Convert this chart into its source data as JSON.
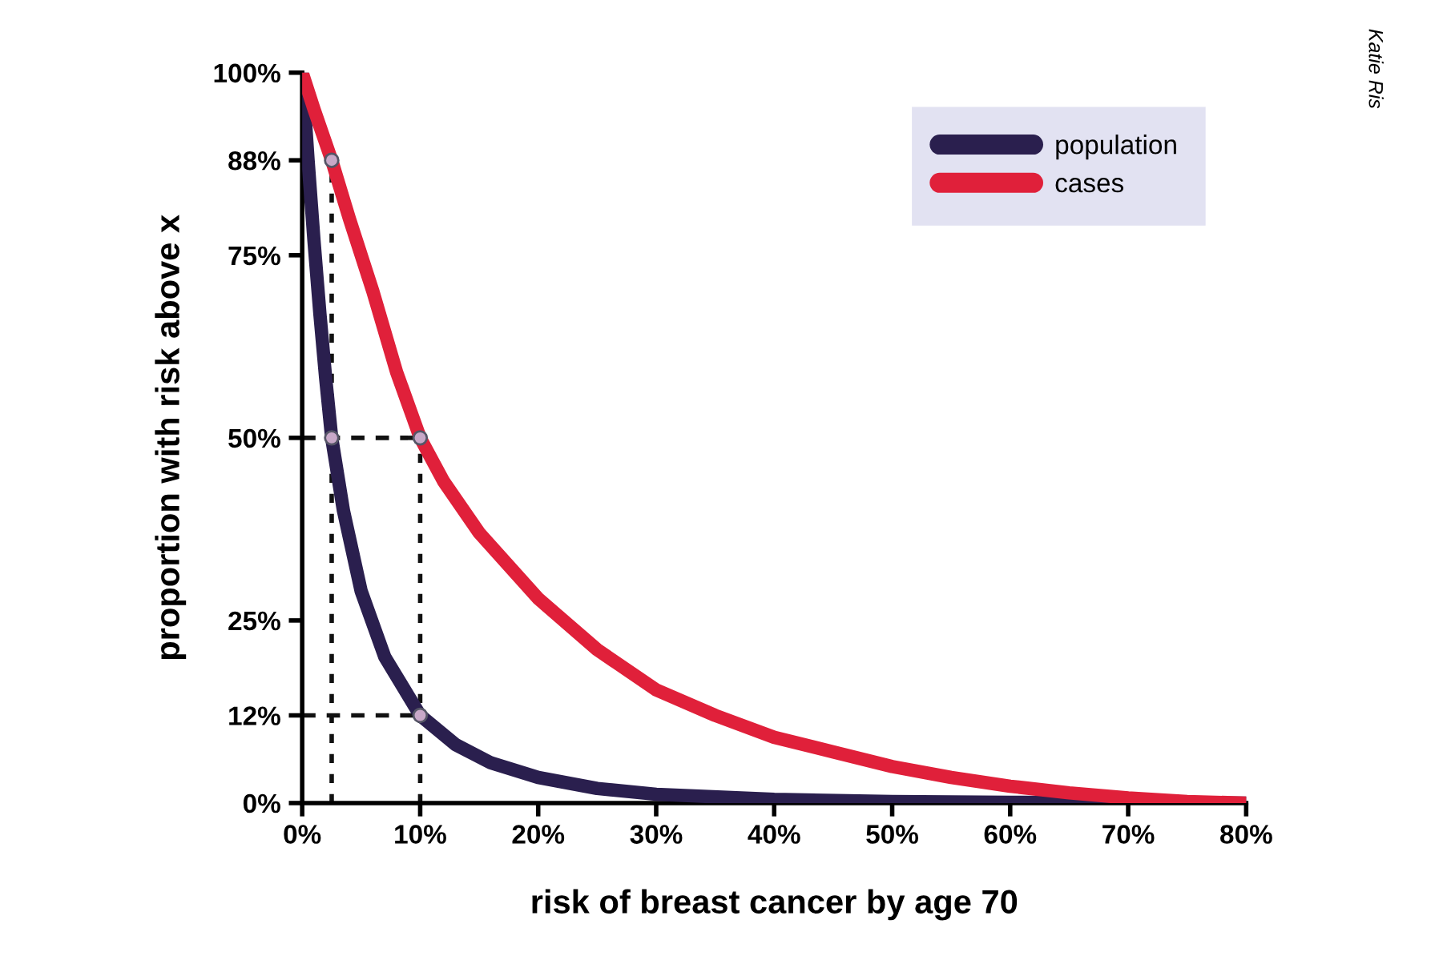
{
  "chart_data": {
    "type": "line",
    "xlabel": "risk of breast cancer by age 70",
    "ylabel": "proportion with risk above x",
    "annotations": [
      "Katie Ris"
    ],
    "xlim": [
      0,
      80
    ],
    "xticks": [
      {
        "value": 0,
        "label": "0%"
      },
      {
        "value": 10,
        "label": "10%"
      },
      {
        "value": 20,
        "label": "20%"
      },
      {
        "value": 30,
        "label": "30%"
      },
      {
        "value": 40,
        "label": "40%"
      },
      {
        "value": 50,
        "label": "50%"
      },
      {
        "value": 60,
        "label": "60%"
      },
      {
        "value": 70,
        "label": "70%"
      },
      {
        "value": 80,
        "label": "80%"
      }
    ],
    "ylim": [
      0,
      100
    ],
    "yticks": [
      {
        "value": 0,
        "label": "0%"
      },
      {
        "value": 12,
        "label": "12%"
      },
      {
        "value": 25,
        "label": "25%"
      },
      {
        "value": 50,
        "label": "50%"
      },
      {
        "value": 75,
        "label": "75%"
      },
      {
        "value": 88,
        "label": "88%"
      },
      {
        "value": 100,
        "label": "100%"
      }
    ],
    "grid": false,
    "ref_lines": [
      {
        "axis": "x",
        "value": 2.5,
        "color": "#111111",
        "line_style": "dotted"
      },
      {
        "axis": "x",
        "value": 10,
        "color": "#111111",
        "line_style": "dotted"
      },
      {
        "axis": "y",
        "value": 50,
        "color": "#111111",
        "line_style": "dashed"
      },
      {
        "axis": "y",
        "value": 12,
        "color": "#111111",
        "line_style": "dashed"
      }
    ],
    "legend": "top right",
    "series": [
      {
        "name": "population",
        "color": "#2a1f4e",
        "x": [
          0,
          0.5,
          1,
          1.5,
          2,
          2.5,
          3.5,
          5,
          7,
          10,
          13,
          16,
          20,
          25,
          30,
          40,
          50,
          60,
          80
        ],
        "values": [
          100,
          88,
          77,
          67,
          58,
          50,
          40,
          29,
          20,
          12,
          8,
          5.5,
          3.5,
          2,
          1.2,
          0.5,
          0.2,
          0.1,
          0
        ]
      },
      {
        "name": "cases",
        "color": "#e0203a",
        "x": [
          0,
          1,
          2.5,
          4,
          6,
          8,
          10,
          12,
          15,
          20,
          25,
          30,
          35,
          40,
          45,
          50,
          55,
          60,
          65,
          70,
          75,
          80
        ],
        "values": [
          100,
          95,
          88,
          80,
          70,
          59,
          50,
          44,
          37,
          28,
          21,
          15.5,
          12,
          9,
          7,
          5,
          3.5,
          2.3,
          1.4,
          0.7,
          0.2,
          0
        ]
      },
      {
        "type": "scatter",
        "color": "#c8a8c8",
        "marker": "circle",
        "x": [
          2.5,
          2.5,
          10,
          10
        ],
        "values": [
          88,
          50,
          50,
          12
        ]
      }
    ]
  }
}
